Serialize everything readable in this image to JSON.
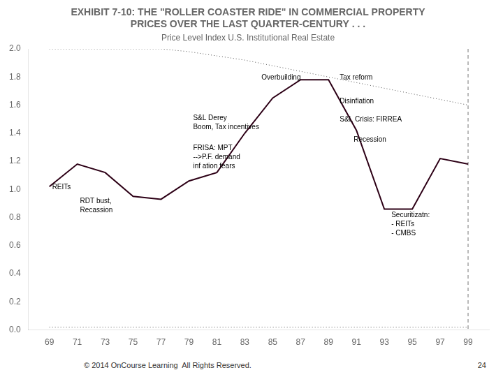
{
  "chart_data": {
    "type": "line",
    "title": [
      "EXHIBIT 7-10: THE \"ROLLER COASTER RIDE\" IN COMMERCIAL PROPERTY",
      "PRICES OVER THE LAST QUARTER-CENTURY . . ."
    ],
    "subtitle": "Price Level Index U.S. Institutional Real Estate",
    "footer": "© 2014 OnCourse Learning  All Rights Reserved.",
    "page_number": "24",
    "x": [
      69,
      71,
      73,
      75,
      77,
      79,
      81,
      83,
      85,
      87,
      89,
      91,
      93,
      95,
      97,
      99
    ],
    "series": [
      {
        "color": "#2D0016",
        "line_style": "solid",
        "values": [
          1.02,
          1.18,
          1.12,
          0.95,
          0.93,
          1.06,
          1.12,
          1.4,
          1.65,
          1.78,
          1.78,
          1.42,
          0.86,
          0.86,
          1.22,
          1.18
        ]
      },
      {
        "color": "#555555",
        "line_style": "dotted",
        "values": [
          2.0,
          2.0,
          2.0,
          2.0,
          2.0,
          1.98,
          1.95,
          1.92,
          1.88,
          1.84,
          1.8,
          1.76,
          1.72,
          1.68,
          1.64,
          1.6
        ]
      },
      {
        "color": "#555555",
        "line_style": "dotted",
        "values": [
          0.02,
          0.02,
          0.02,
          0.02,
          0.02,
          0.02,
          0.02,
          0.02,
          0.02,
          0.02,
          0.02,
          0.02,
          0.02,
          0.02,
          0.02,
          0.02
        ]
      }
    ],
    "xlim": [
      67.5,
      100.5
    ],
    "xticks": [
      69,
      71,
      73,
      75,
      77,
      79,
      81,
      83,
      85,
      87,
      89,
      91,
      93,
      95,
      97,
      99
    ],
    "ylim": [
      0.0,
      2.0
    ],
    "yticks": [
      {
        "value": 0,
        "label": "0.0"
      },
      0.2,
      0.4,
      0.6,
      0.8,
      {
        "value": 1,
        "label": "1.0"
      },
      1.2,
      1.4,
      1.6,
      1.8,
      {
        "value": 2,
        "label": "2.0"
      }
    ],
    "vlines": [
      99
    ],
    "annotations": [
      {
        "text": "REITs",
        "x": 69.2,
        "y": 1.04
      },
      {
        "text": "RDT bust,\nRecassion",
        "x": 71.2,
        "y": 0.94
      },
      {
        "text": "S&L Derey\nBoom, Tax incentives",
        "x": 79.3,
        "y": 1.53
      },
      {
        "text": "FRISA: MPT\n-->P.F. demand\ninf ation fears",
        "x": 79.3,
        "y": 1.32
      },
      {
        "text": "Overbuilding",
        "x": 84.2,
        "y": 1.82
      },
      {
        "text": "Tax reform",
        "x": 89.8,
        "y": 1.82
      },
      {
        "text": "Disinfiation",
        "x": 89.8,
        "y": 1.65
      },
      {
        "text": "S&L Crisis: FIRREA",
        "x": 89.8,
        "y": 1.52
      },
      {
        "text": "Recession",
        "x": 90.8,
        "y": 1.38
      },
      {
        "text": "Securitizatn:\n- REITs\n- CMBS",
        "x": 93.5,
        "y": 0.84
      }
    ],
    "grid": false,
    "legend": false
  }
}
